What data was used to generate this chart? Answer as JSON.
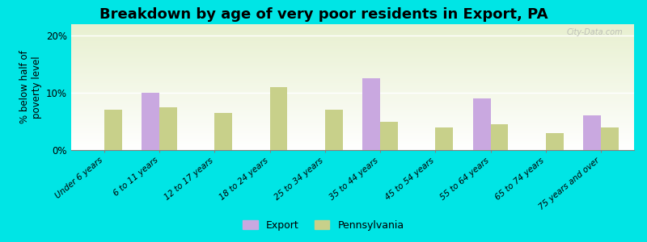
{
  "title": "Breakdown by age of very poor residents in Export, PA",
  "ylabel": "% below half of\npoverty level",
  "categories": [
    "Under 6 years",
    "6 to 11 years",
    "12 to 17 years",
    "18 to 24 years",
    "25 to 34 years",
    "35 to 44 years",
    "45 to 54 years",
    "55 to 64 years",
    "65 to 74 years",
    "75 years and over"
  ],
  "export_values": [
    0,
    10.0,
    0,
    0,
    0,
    12.5,
    0,
    9.0,
    0,
    6.0
  ],
  "pa_values": [
    7.0,
    7.5,
    6.5,
    11.0,
    7.0,
    5.0,
    4.0,
    4.5,
    3.0,
    4.0
  ],
  "export_color": "#c9a8e0",
  "pa_color": "#c8d08a",
  "background_outer": "#00e5e5",
  "background_plot_top": "#e8f0d0",
  "background_plot_bottom": "#ffffff",
  "ylim": [
    0,
    22
  ],
  "yticks": [
    0,
    10,
    20
  ],
  "ytick_labels": [
    "0%",
    "10%",
    "20%"
  ],
  "bar_width": 0.32,
  "title_fontsize": 13,
  "axis_label_fontsize": 8.5,
  "tick_label_fontsize": 7.5,
  "legend_labels": [
    "Export",
    "Pennsylvania"
  ],
  "watermark": "City-Data.com"
}
